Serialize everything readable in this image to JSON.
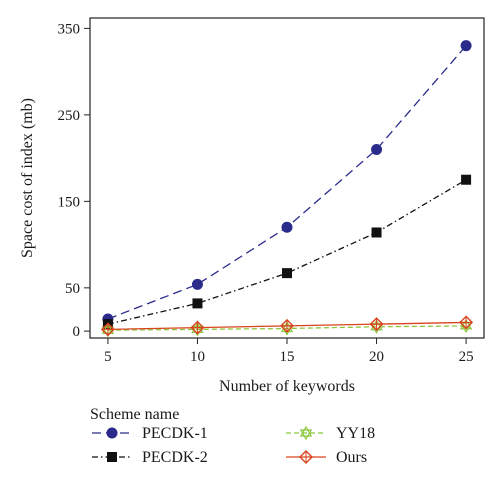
{
  "chart_data": {
    "type": "line",
    "xlabel": "Number of keywords",
    "ylabel": "Space cost of index (mb)",
    "x": [
      5,
      10,
      15,
      20,
      25
    ],
    "xlim": [
      4,
      26
    ],
    "ylim": [
      -8,
      362
    ],
    "xticks": [
      5,
      10,
      15,
      20,
      25
    ],
    "yticks": [
      0,
      50,
      150,
      250,
      350
    ],
    "grid": false,
    "legend": {
      "title": "Scheme name",
      "placement": "bottom"
    },
    "series": [
      {
        "name": "PECDK-1",
        "values": [
          14,
          54,
          120,
          210,
          330
        ],
        "color": "#2b2b8c",
        "marker": "circle",
        "dash": "long"
      },
      {
        "name": "PECDK-2",
        "values": [
          8,
          32,
          67,
          114,
          175
        ],
        "color": "#111111",
        "marker": "square",
        "dash": "dashdot"
      },
      {
        "name": "YY18",
        "values": [
          1,
          2,
          3,
          5,
          6
        ],
        "color": "#8cc63f",
        "marker": "star",
        "dash": "dash"
      },
      {
        "name": "Ours",
        "values": [
          2,
          4,
          6,
          8,
          10
        ],
        "color": "#d9431e",
        "marker": "diamond",
        "dash": "solid"
      }
    ]
  }
}
